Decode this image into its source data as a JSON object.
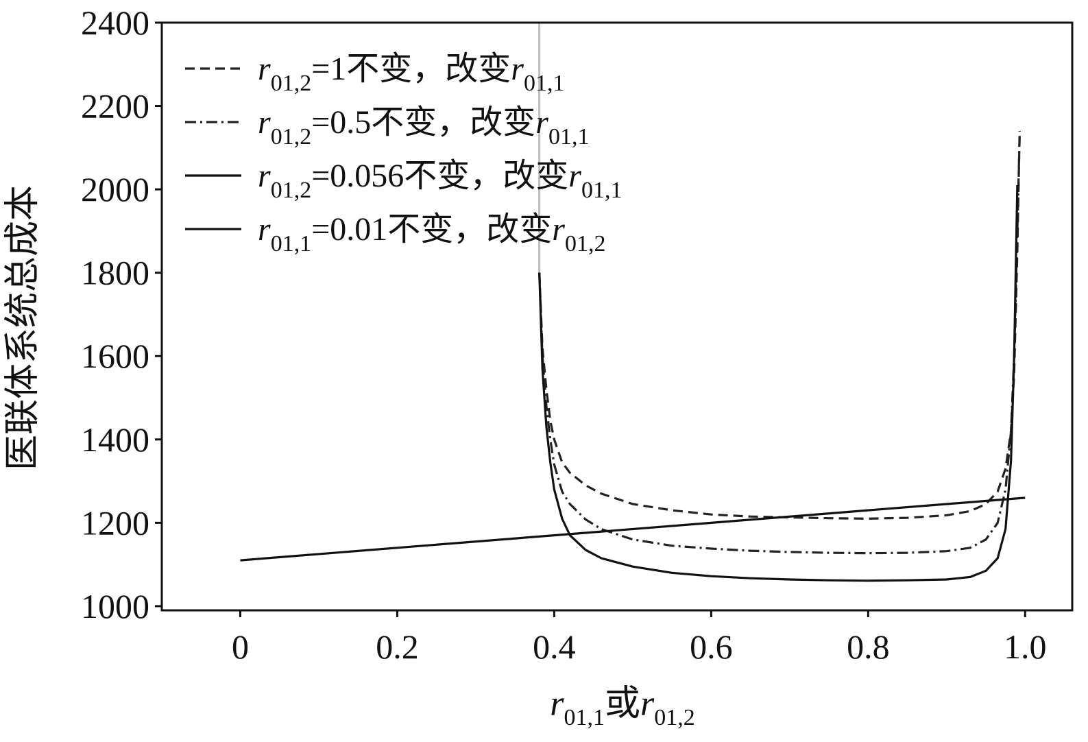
{
  "chart_data": {
    "type": "line",
    "xlabel": {
      "main": "r",
      "sub": "01,1",
      "mid": "或",
      "main2": "r",
      "sub2": "01,2"
    },
    "ylabel": "医联体系统总成本",
    "xlim": [
      -0.1,
      1.06
    ],
    "ylim": [
      990,
      2400
    ],
    "xticks": [
      0,
      0.2,
      0.4,
      0.6,
      0.8,
      1.0
    ],
    "xtick_labels": [
      "0",
      "0.2",
      "0.4",
      "0.6",
      "0.8",
      "1.0"
    ],
    "yticks": [
      1000,
      1200,
      1400,
      1600,
      1800,
      2000,
      2200,
      2400
    ],
    "ytick_labels": [
      "1000",
      "1200",
      "1400",
      "1600",
      "1800",
      "2000",
      "2200",
      "2400"
    ],
    "grid": false,
    "legend_position": "top-left",
    "series": [
      {
        "name": "r01,2=1不变，改变r01,1",
        "legend": {
          "a": "r",
          "a_sub": "01,2",
          "text": "=1不变，改变",
          "b": "r",
          "b_sub": "01,1"
        },
        "style": "dashed",
        "color": "#222222",
        "x": [
          0.381,
          0.385,
          0.39,
          0.395,
          0.4,
          0.41,
          0.42,
          0.44,
          0.46,
          0.5,
          0.55,
          0.6,
          0.65,
          0.7,
          0.75,
          0.8,
          0.85,
          0.9,
          0.93,
          0.95,
          0.965,
          0.975,
          0.982,
          0.986,
          0.99,
          0.993
        ],
        "y": [
          1800,
          1620,
          1520,
          1445,
          1400,
          1345,
          1320,
          1290,
          1270,
          1245,
          1230,
          1220,
          1215,
          1213,
          1211,
          1210,
          1212,
          1218,
          1228,
          1245,
          1275,
          1330,
          1420,
          1560,
          1850,
          2140
        ]
      },
      {
        "name": "r01,2=0.5不变，改变r01,1",
        "legend": {
          "a": "r",
          "a_sub": "01,2",
          "text": "=0.5不变，改变",
          "b": "r",
          "b_sub": "01,1"
        },
        "style": "dashdot",
        "color": "#222222",
        "x": [
          0.381,
          0.385,
          0.39,
          0.395,
          0.4,
          0.41,
          0.42,
          0.44,
          0.46,
          0.5,
          0.55,
          0.6,
          0.65,
          0.7,
          0.75,
          0.8,
          0.85,
          0.9,
          0.93,
          0.95,
          0.965,
          0.975,
          0.982,
          0.986,
          0.99,
          0.993
        ],
        "y": [
          1800,
          1600,
          1480,
          1400,
          1340,
          1275,
          1245,
          1208,
          1185,
          1160,
          1145,
          1138,
          1133,
          1130,
          1128,
          1127,
          1128,
          1132,
          1140,
          1160,
          1200,
          1280,
          1420,
          1600,
          1900,
          2130
        ]
      },
      {
        "name": "r01,2=0.056不变，改变r01,1",
        "legend": {
          "a": "r",
          "a_sub": "01,2",
          "text": "=0.056不变，改变",
          "b": "r",
          "b_sub": "01,1"
        },
        "style": "solid",
        "color": "#111111",
        "x": [
          0.381,
          0.385,
          0.39,
          0.395,
          0.4,
          0.41,
          0.42,
          0.44,
          0.46,
          0.5,
          0.55,
          0.6,
          0.65,
          0.7,
          0.75,
          0.8,
          0.85,
          0.9,
          0.93,
          0.95,
          0.965,
          0.975,
          0.982,
          0.986,
          0.99
        ],
        "y": [
          1800,
          1570,
          1430,
          1345,
          1280,
          1210,
          1170,
          1135,
          1115,
          1095,
          1080,
          1072,
          1067,
          1064,
          1062,
          1061,
          1062,
          1064,
          1070,
          1085,
          1115,
          1185,
          1350,
          1600,
          2010
        ]
      },
      {
        "name": "r01,1=0.01不变，改变r01,2",
        "legend": {
          "a": "r",
          "a_sub": "01,1",
          "text": "=0.01不变，改变",
          "b": "r",
          "b_sub": "01,2"
        },
        "style": "solid",
        "color": "#111111",
        "x": [
          0,
          0.2,
          0.4,
          0.6,
          0.8,
          1.0
        ],
        "y": [
          1110,
          1140,
          1170,
          1200,
          1230,
          1260
        ]
      }
    ]
  }
}
